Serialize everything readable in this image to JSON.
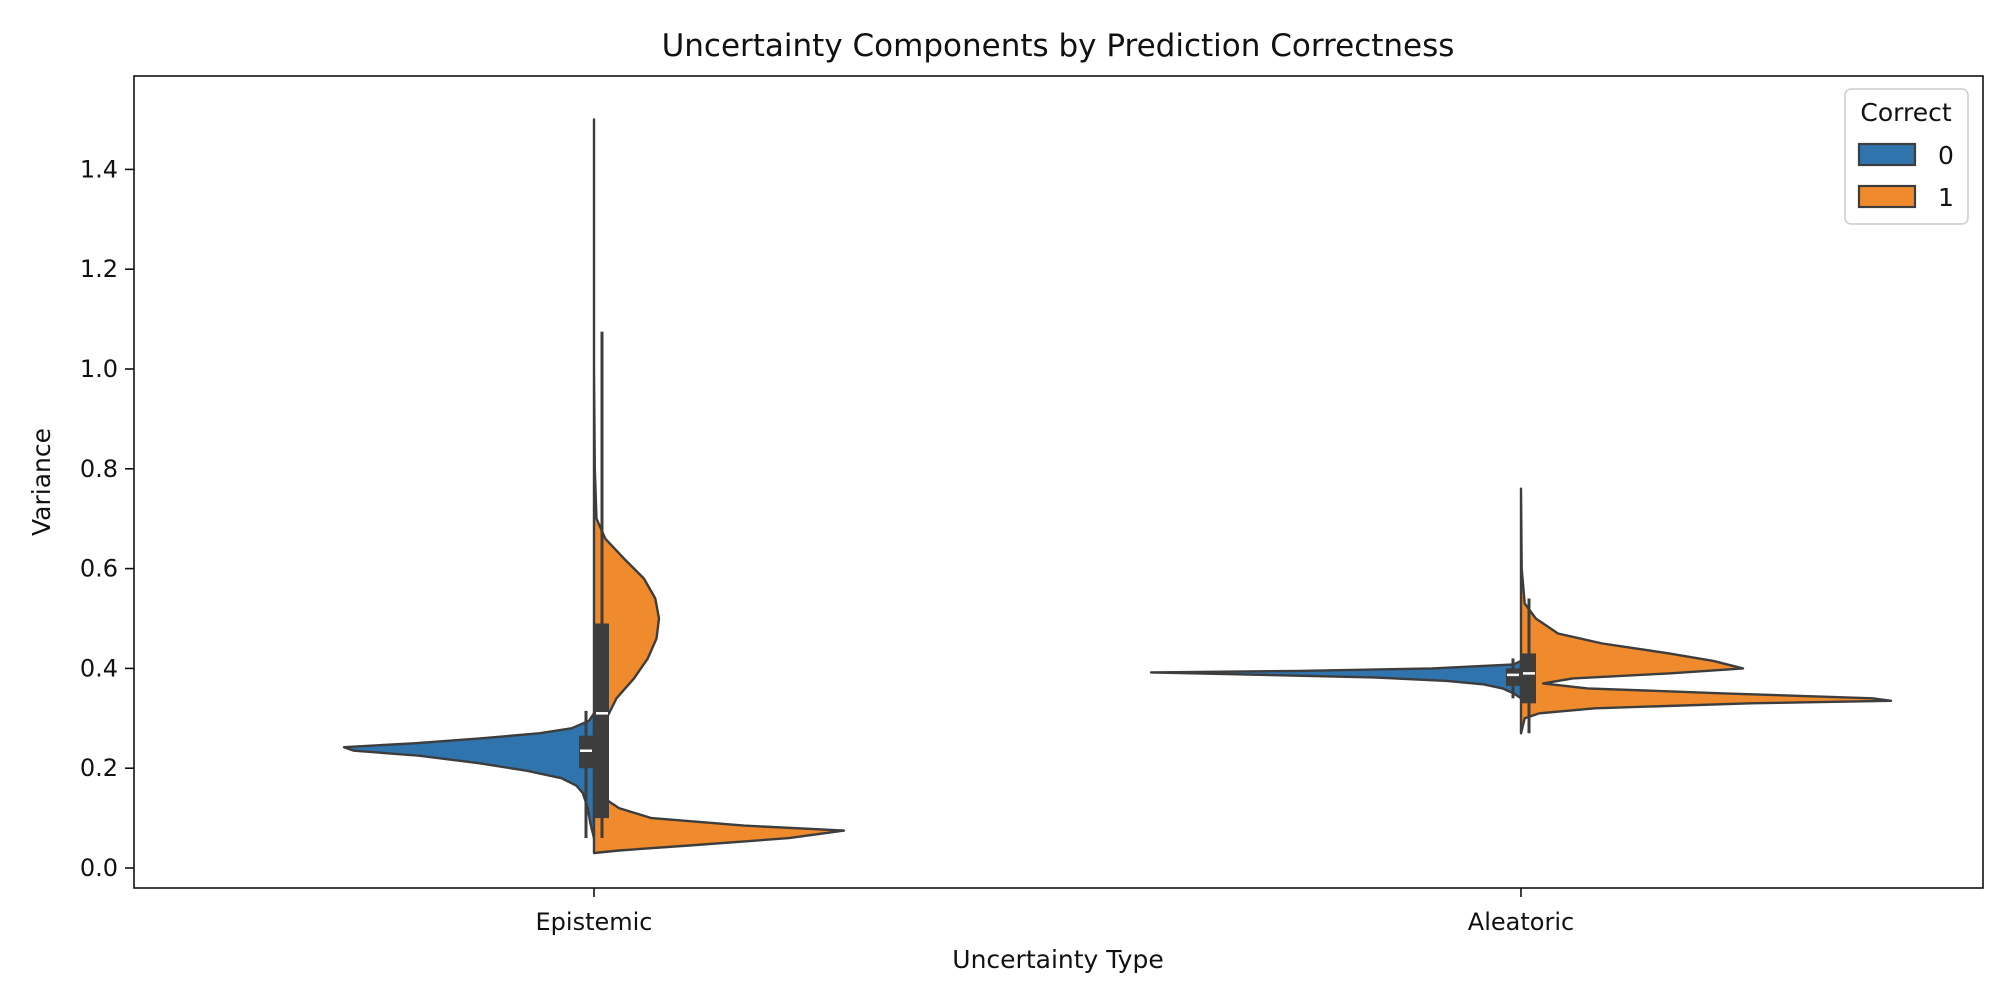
{
  "chart_data": {
    "type": "violin",
    "title": "Uncertainty Components by Prediction Correctness",
    "xlabel": "Uncertainty Type",
    "ylabel": "Variance",
    "categories": [
      "Epistemic",
      "Aleatoric"
    ],
    "ylim": [
      -0.04,
      1.57
    ],
    "yticks": [
      "0.0",
      "0.2",
      "0.4",
      "0.6",
      "0.8",
      "1.0",
      "1.2",
      "1.4"
    ],
    "split": true,
    "grid": false,
    "legend": {
      "title": "Correct",
      "position": "top-right"
    },
    "series": [
      {
        "name": "0",
        "color": "#2f74ad",
        "side": "left",
        "violins": [
          {
            "category": "Epistemic",
            "min": 0.06,
            "q1": 0.2,
            "median": 0.235,
            "q3": 0.265,
            "max": 0.315,
            "range": [
              0.06,
              0.31
            ],
            "density": [
              [
                0.31,
                0.0
              ],
              [
                0.295,
                0.02
              ],
              [
                0.28,
                0.09
              ],
              [
                0.27,
                0.22
              ],
              [
                0.26,
                0.45
              ],
              [
                0.25,
                0.72
              ],
              [
                0.242,
                1.0
              ],
              [
                0.235,
                0.96
              ],
              [
                0.225,
                0.7
              ],
              [
                0.21,
                0.46
              ],
              [
                0.195,
                0.27
              ],
              [
                0.18,
                0.13
              ],
              [
                0.165,
                0.07
              ],
              [
                0.15,
                0.045
              ],
              [
                0.12,
                0.025
              ],
              [
                0.09,
                0.015
              ],
              [
                0.06,
                0.0
              ]
            ]
          },
          {
            "category": "Aleatoric",
            "min": 0.34,
            "q1": 0.365,
            "median": 0.387,
            "q3": 0.4,
            "max": 0.42,
            "range": [
              0.34,
              0.415
            ],
            "density": [
              [
                0.415,
                0.0
              ],
              [
                0.408,
                0.02
              ],
              [
                0.4,
                0.24
              ],
              [
                0.395,
                0.6
              ],
              [
                0.392,
                1.0
              ],
              [
                0.388,
                0.75
              ],
              [
                0.382,
                0.4
              ],
              [
                0.375,
                0.2
              ],
              [
                0.368,
                0.1
              ],
              [
                0.36,
                0.05
              ],
              [
                0.35,
                0.02
              ],
              [
                0.34,
                0.0
              ]
            ]
          }
        ]
      },
      {
        "name": "1",
        "color": "#ef8b2c",
        "side": "right",
        "violins": [
          {
            "category": "Epistemic",
            "min": 0.06,
            "q1": 0.1,
            "median": 0.31,
            "q3": 0.49,
            "max": 1.075,
            "range": [
              0.03,
              1.5
            ],
            "density": [
              [
                1.5,
                0.0
              ],
              [
                1.0,
                0.0
              ],
              [
                0.8,
                0.003
              ],
              [
                0.7,
                0.01
              ],
              [
                0.66,
                0.045
              ],
              [
                0.62,
                0.12
              ],
              [
                0.58,
                0.2
              ],
              [
                0.54,
                0.245
              ],
              [
                0.5,
                0.26
              ],
              [
                0.46,
                0.25
              ],
              [
                0.42,
                0.215
              ],
              [
                0.38,
                0.16
              ],
              [
                0.34,
                0.09
              ],
              [
                0.3,
                0.05
              ],
              [
                0.26,
                0.03
              ],
              [
                0.2,
                0.02
              ],
              [
                0.14,
                0.04
              ],
              [
                0.12,
                0.1
              ],
              [
                0.1,
                0.23
              ],
              [
                0.085,
                0.6
              ],
              [
                0.075,
                1.0
              ],
              [
                0.06,
                0.78
              ],
              [
                0.045,
                0.38
              ],
              [
                0.035,
                0.1
              ],
              [
                0.03,
                0.0
              ]
            ]
          },
          {
            "category": "Aleatoric",
            "min": 0.27,
            "q1": 0.33,
            "median": 0.39,
            "q3": 0.43,
            "max": 0.54,
            "range": [
              0.27,
              0.76
            ],
            "density": [
              [
                0.76,
                0.0
              ],
              [
                0.6,
                0.002
              ],
              [
                0.53,
                0.01
              ],
              [
                0.5,
                0.04
              ],
              [
                0.47,
                0.1
              ],
              [
                0.45,
                0.22
              ],
              [
                0.43,
                0.4
              ],
              [
                0.415,
                0.52
              ],
              [
                0.4,
                0.6
              ],
              [
                0.39,
                0.4
              ],
              [
                0.38,
                0.14
              ],
              [
                0.37,
                0.06
              ],
              [
                0.36,
                0.18
              ],
              [
                0.35,
                0.55
              ],
              [
                0.34,
                0.95
              ],
              [
                0.335,
                1.0
              ],
              [
                0.33,
                0.62
              ],
              [
                0.32,
                0.2
              ],
              [
                0.31,
                0.05
              ],
              [
                0.3,
                0.01
              ],
              [
                0.27,
                0.0
              ]
            ]
          }
        ]
      }
    ]
  }
}
